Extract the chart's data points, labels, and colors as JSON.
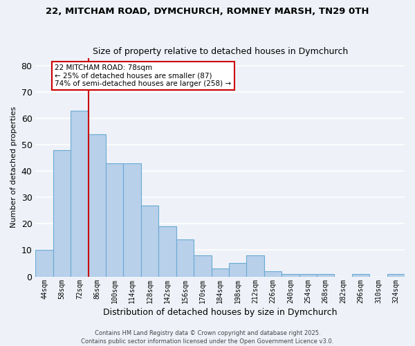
{
  "title_line1": "22, MITCHAM ROAD, DYMCHURCH, ROMNEY MARSH, TN29 0TH",
  "title_line2": "Size of property relative to detached houses in Dymchurch",
  "xlabel": "Distribution of detached houses by size in Dymchurch",
  "ylabel": "Number of detached properties",
  "bin_labels": [
    "44sqm",
    "58sqm",
    "72sqm",
    "86sqm",
    "100sqm",
    "114sqm",
    "128sqm",
    "142sqm",
    "156sqm",
    "170sqm",
    "184sqm",
    "198sqm",
    "212sqm",
    "226sqm",
    "240sqm",
    "254sqm",
    "268sqm",
    "282sqm",
    "296sqm",
    "310sqm",
    "324sqm"
  ],
  "bar_heights": [
    10,
    48,
    63,
    54,
    43,
    43,
    27,
    19,
    14,
    8,
    3,
    5,
    8,
    2,
    1,
    1,
    1,
    0,
    1,
    0,
    1
  ],
  "bar_color": "#b8d0ea",
  "bar_edge_color": "#6aaad4",
  "ylim": [
    0,
    83
  ],
  "yticks": [
    0,
    10,
    20,
    30,
    40,
    50,
    60,
    70,
    80
  ],
  "redline_x": 3.0,
  "annotation_title": "22 MITCHAM ROAD: 78sqm",
  "annotation_line2": "← 25% of detached houses are smaller (87)",
  "annotation_line3": "74% of semi-detached houses are larger (258) →",
  "annotation_box_color": "#ffffff",
  "annotation_box_edge": "#cc0000",
  "redline_color": "#cc0000",
  "background_color": "#eef2f8",
  "grid_color": "#ffffff",
  "footer1": "Contains HM Land Registry data © Crown copyright and database right 2025.",
  "footer2": "Contains public sector information licensed under the Open Government Licence v3.0."
}
